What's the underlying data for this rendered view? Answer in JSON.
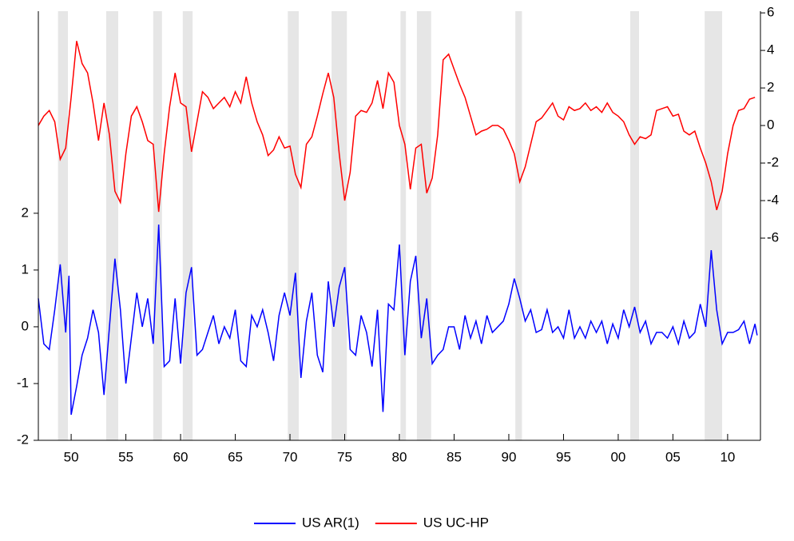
{
  "chart_data": {
    "type": "line",
    "xlim": [
      1947,
      2013
    ],
    "xticks": [
      {
        "value": 1950,
        "label": "50"
      },
      {
        "value": 1955,
        "label": "55"
      },
      {
        "value": 1960,
        "label": "60"
      },
      {
        "value": 1965,
        "label": "65"
      },
      {
        "value": 1970,
        "label": "70"
      },
      {
        "value": 1975,
        "label": "75"
      },
      {
        "value": 1980,
        "label": "80"
      },
      {
        "value": 1985,
        "label": "85"
      },
      {
        "value": 1990,
        "label": "90"
      },
      {
        "value": 1995,
        "label": "95"
      },
      {
        "value": 2000,
        "label": "00"
      },
      {
        "value": 2005,
        "label": "05"
      },
      {
        "value": 2010,
        "label": "10"
      }
    ],
    "ylim": [
      -2,
      5.56
    ],
    "yticks": [
      -2,
      -1,
      0,
      1,
      2
    ],
    "y2lim": [
      -16.77,
      6.09
    ],
    "y2ticks": [
      -6,
      -4,
      -2,
      0,
      2,
      4,
      6
    ],
    "shaded_periods": [
      [
        1948.8,
        1949.7
      ],
      [
        1953.2,
        1954.3
      ],
      [
        1957.5,
        1958.3
      ],
      [
        1960.2,
        1961.1
      ],
      [
        1969.8,
        1970.8
      ],
      [
        1973.8,
        1975.2
      ],
      [
        1980.1,
        1980.6
      ],
      [
        1981.6,
        1982.9
      ],
      [
        1990.6,
        1991.2
      ],
      [
        2001.1,
        2001.9
      ],
      [
        2007.9,
        2009.5
      ]
    ],
    "shade_color": "#e6e6e6",
    "series": [
      {
        "name": "US AR(1)",
        "color": "#0000ff",
        "axis": "y",
        "x": [
          1947.0,
          1947.5,
          1948.0,
          1948.5,
          1949.0,
          1949.5,
          1949.8,
          1950.0,
          1950.5,
          1951.0,
          1951.5,
          1952.0,
          1952.5,
          1953.0,
          1953.5,
          1954.0,
          1954.5,
          1955.0,
          1955.5,
          1956.0,
          1956.5,
          1957.0,
          1957.5,
          1958.0,
          1958.5,
          1959.0,
          1959.5,
          1960.0,
          1960.5,
          1961.0,
          1961.5,
          1962.0,
          1962.5,
          1963.0,
          1963.5,
          1964.0,
          1964.5,
          1965.0,
          1965.5,
          1966.0,
          1966.5,
          1967.0,
          1967.5,
          1968.0,
          1968.5,
          1969.0,
          1969.5,
          1970.0,
          1970.5,
          1971.0,
          1971.5,
          1972.0,
          1972.5,
          1973.0,
          1973.5,
          1974.0,
          1974.5,
          1975.0,
          1975.5,
          1976.0,
          1976.5,
          1977.0,
          1977.5,
          1978.0,
          1978.5,
          1979.0,
          1979.5,
          1980.0,
          1980.5,
          1981.0,
          1981.5,
          1982.0,
          1982.5,
          1983.0,
          1983.5,
          1984.0,
          1984.5,
          1985.0,
          1985.5,
          1986.0,
          1986.5,
          1987.0,
          1987.5,
          1988.0,
          1988.5,
          1989.0,
          1989.5,
          1990.0,
          1990.5,
          1991.0,
          1991.5,
          1992.0,
          1992.5,
          1993.0,
          1993.5,
          1994.0,
          1994.5,
          1995.0,
          1995.5,
          1996.0,
          1996.5,
          1997.0,
          1997.5,
          1998.0,
          1998.5,
          1999.0,
          1999.5,
          2000.0,
          2000.5,
          2001.0,
          2001.5,
          2002.0,
          2002.5,
          2003.0,
          2003.5,
          2004.0,
          2004.5,
          2005.0,
          2005.5,
          2006.0,
          2006.5,
          2007.0,
          2007.5,
          2008.0,
          2008.5,
          2009.0,
          2009.5,
          2010.0,
          2010.5,
          2011.0,
          2011.5,
          2012.0,
          2012.5,
          2012.7
        ],
        "values": [
          0.5,
          -0.3,
          -0.4,
          0.3,
          1.1,
          -0.1,
          0.9,
          -1.55,
          -1.05,
          -0.5,
          -0.2,
          0.3,
          -0.1,
          -1.2,
          0.0,
          1.2,
          0.3,
          -1.0,
          -0.2,
          0.6,
          0.0,
          0.5,
          -0.3,
          1.8,
          -0.7,
          -0.6,
          0.5,
          -0.65,
          0.6,
          1.05,
          -0.5,
          -0.4,
          -0.1,
          0.2,
          -0.3,
          0.0,
          -0.2,
          0.3,
          -0.6,
          -0.7,
          0.2,
          0.0,
          0.3,
          -0.1,
          -0.6,
          0.2,
          0.6,
          0.2,
          0.95,
          -0.9,
          0.1,
          0.6,
          -0.5,
          -0.8,
          0.8,
          0.0,
          0.7,
          1.05,
          -0.4,
          -0.5,
          0.2,
          -0.1,
          -0.7,
          0.3,
          -1.5,
          0.4,
          0.3,
          1.45,
          -0.5,
          0.8,
          1.25,
          -0.2,
          0.5,
          -0.65,
          -0.5,
          -0.4,
          0.0,
          0.0,
          -0.4,
          0.2,
          -0.2,
          0.1,
          -0.3,
          0.2,
          -0.1,
          0.0,
          0.1,
          0.4,
          0.85,
          0.5,
          0.1,
          0.3,
          -0.1,
          -0.05,
          0.3,
          -0.1,
          0.0,
          -0.2,
          0.3,
          -0.2,
          0.0,
          -0.2,
          0.1,
          -0.1,
          0.1,
          -0.3,
          0.05,
          -0.2,
          0.3,
          0.0,
          0.35,
          -0.1,
          0.1,
          -0.3,
          -0.1,
          -0.1,
          -0.2,
          0.0,
          -0.3,
          0.1,
          -0.2,
          -0.1,
          0.4,
          0.0,
          1.35,
          0.3,
          -0.3,
          -0.1,
          -0.1,
          -0.05,
          0.1,
          -0.3,
          0.05,
          -0.15
        ]
      },
      {
        "name": "US UC-HP",
        "color": "#ff0000",
        "axis": "y2",
        "x": [
          1947.0,
          1947.5,
          1948.0,
          1948.5,
          1949.0,
          1949.5,
          1950.0,
          1950.5,
          1951.0,
          1951.5,
          1952.0,
          1952.5,
          1953.0,
          1953.5,
          1954.0,
          1954.5,
          1955.0,
          1955.5,
          1956.0,
          1956.5,
          1957.0,
          1957.5,
          1958.0,
          1958.5,
          1959.0,
          1959.5,
          1960.0,
          1960.5,
          1961.0,
          1961.5,
          1962.0,
          1962.5,
          1963.0,
          1963.5,
          1964.0,
          1964.5,
          1965.0,
          1965.5,
          1966.0,
          1966.5,
          1967.0,
          1967.5,
          1968.0,
          1968.5,
          1969.0,
          1969.5,
          1970.0,
          1970.5,
          1971.0,
          1971.5,
          1972.0,
          1972.5,
          1973.0,
          1973.5,
          1974.0,
          1974.5,
          1975.0,
          1975.5,
          1976.0,
          1976.5,
          1977.0,
          1977.5,
          1978.0,
          1978.5,
          1979.0,
          1979.5,
          1980.0,
          1980.5,
          1981.0,
          1981.5,
          1982.0,
          1982.5,
          1983.0,
          1983.5,
          1984.0,
          1984.5,
          1985.0,
          1985.5,
          1986.0,
          1986.5,
          1987.0,
          1987.5,
          1988.0,
          1988.5,
          1989.0,
          1989.5,
          1990.0,
          1990.5,
          1991.0,
          1991.5,
          1992.0,
          1992.5,
          1993.0,
          1993.5,
          1994.0,
          1994.5,
          1995.0,
          1995.5,
          1996.0,
          1996.5,
          1997.0,
          1997.5,
          1998.0,
          1998.5,
          1999.0,
          1999.5,
          2000.0,
          2000.5,
          2001.0,
          2001.5,
          2002.0,
          2002.5,
          2003.0,
          2003.5,
          2004.0,
          2004.5,
          2005.0,
          2005.5,
          2006.0,
          2006.5,
          2007.0,
          2007.5,
          2008.0,
          2008.5,
          2009.0,
          2009.5,
          2010.0,
          2010.5,
          2011.0,
          2011.5,
          2012.0,
          2012.5
        ],
        "values": [
          0.0,
          0.5,
          0.8,
          0.2,
          -1.8,
          -1.2,
          1.5,
          4.5,
          3.3,
          2.8,
          1.2,
          -0.8,
          1.2,
          -0.5,
          -3.5,
          -4.1,
          -1.5,
          0.5,
          1.0,
          0.2,
          -0.8,
          -1.0,
          -4.6,
          -1.5,
          1.0,
          2.8,
          1.2,
          1.0,
          -1.4,
          0.2,
          1.8,
          1.5,
          0.9,
          1.2,
          1.5,
          1.0,
          1.8,
          1.2,
          2.6,
          1.2,
          0.2,
          -0.5,
          -1.6,
          -1.3,
          -0.6,
          -1.2,
          -1.1,
          -2.6,
          -3.3,
          -1.0,
          -0.6,
          0.5,
          1.7,
          2.8,
          1.5,
          -1.5,
          -4.0,
          -2.5,
          0.5,
          0.8,
          0.7,
          1.2,
          2.4,
          0.9,
          2.8,
          2.3,
          0.0,
          -1.0,
          -3.4,
          -1.2,
          -1.0,
          -3.6,
          -2.8,
          -0.5,
          3.5,
          3.8,
          3.0,
          2.2,
          1.5,
          0.5,
          -0.5,
          -0.3,
          -0.2,
          0.0,
          0.0,
          -0.2,
          -0.8,
          -1.5,
          -3.0,
          -2.2,
          -1.0,
          0.2,
          0.4,
          0.8,
          1.2,
          0.5,
          0.3,
          1.0,
          0.8,
          0.9,
          1.2,
          0.8,
          1.0,
          0.7,
          1.2,
          0.7,
          0.5,
          0.2,
          -0.5,
          -1.0,
          -0.6,
          -0.7,
          -0.5,
          0.8,
          0.9,
          1.0,
          0.5,
          0.6,
          -0.3,
          -0.5,
          -0.3,
          -1.2,
          -2.0,
          -3.0,
          -4.5,
          -3.5,
          -1.5,
          0.0,
          0.8,
          0.9,
          1.4,
          1.5
        ]
      }
    ]
  }
}
